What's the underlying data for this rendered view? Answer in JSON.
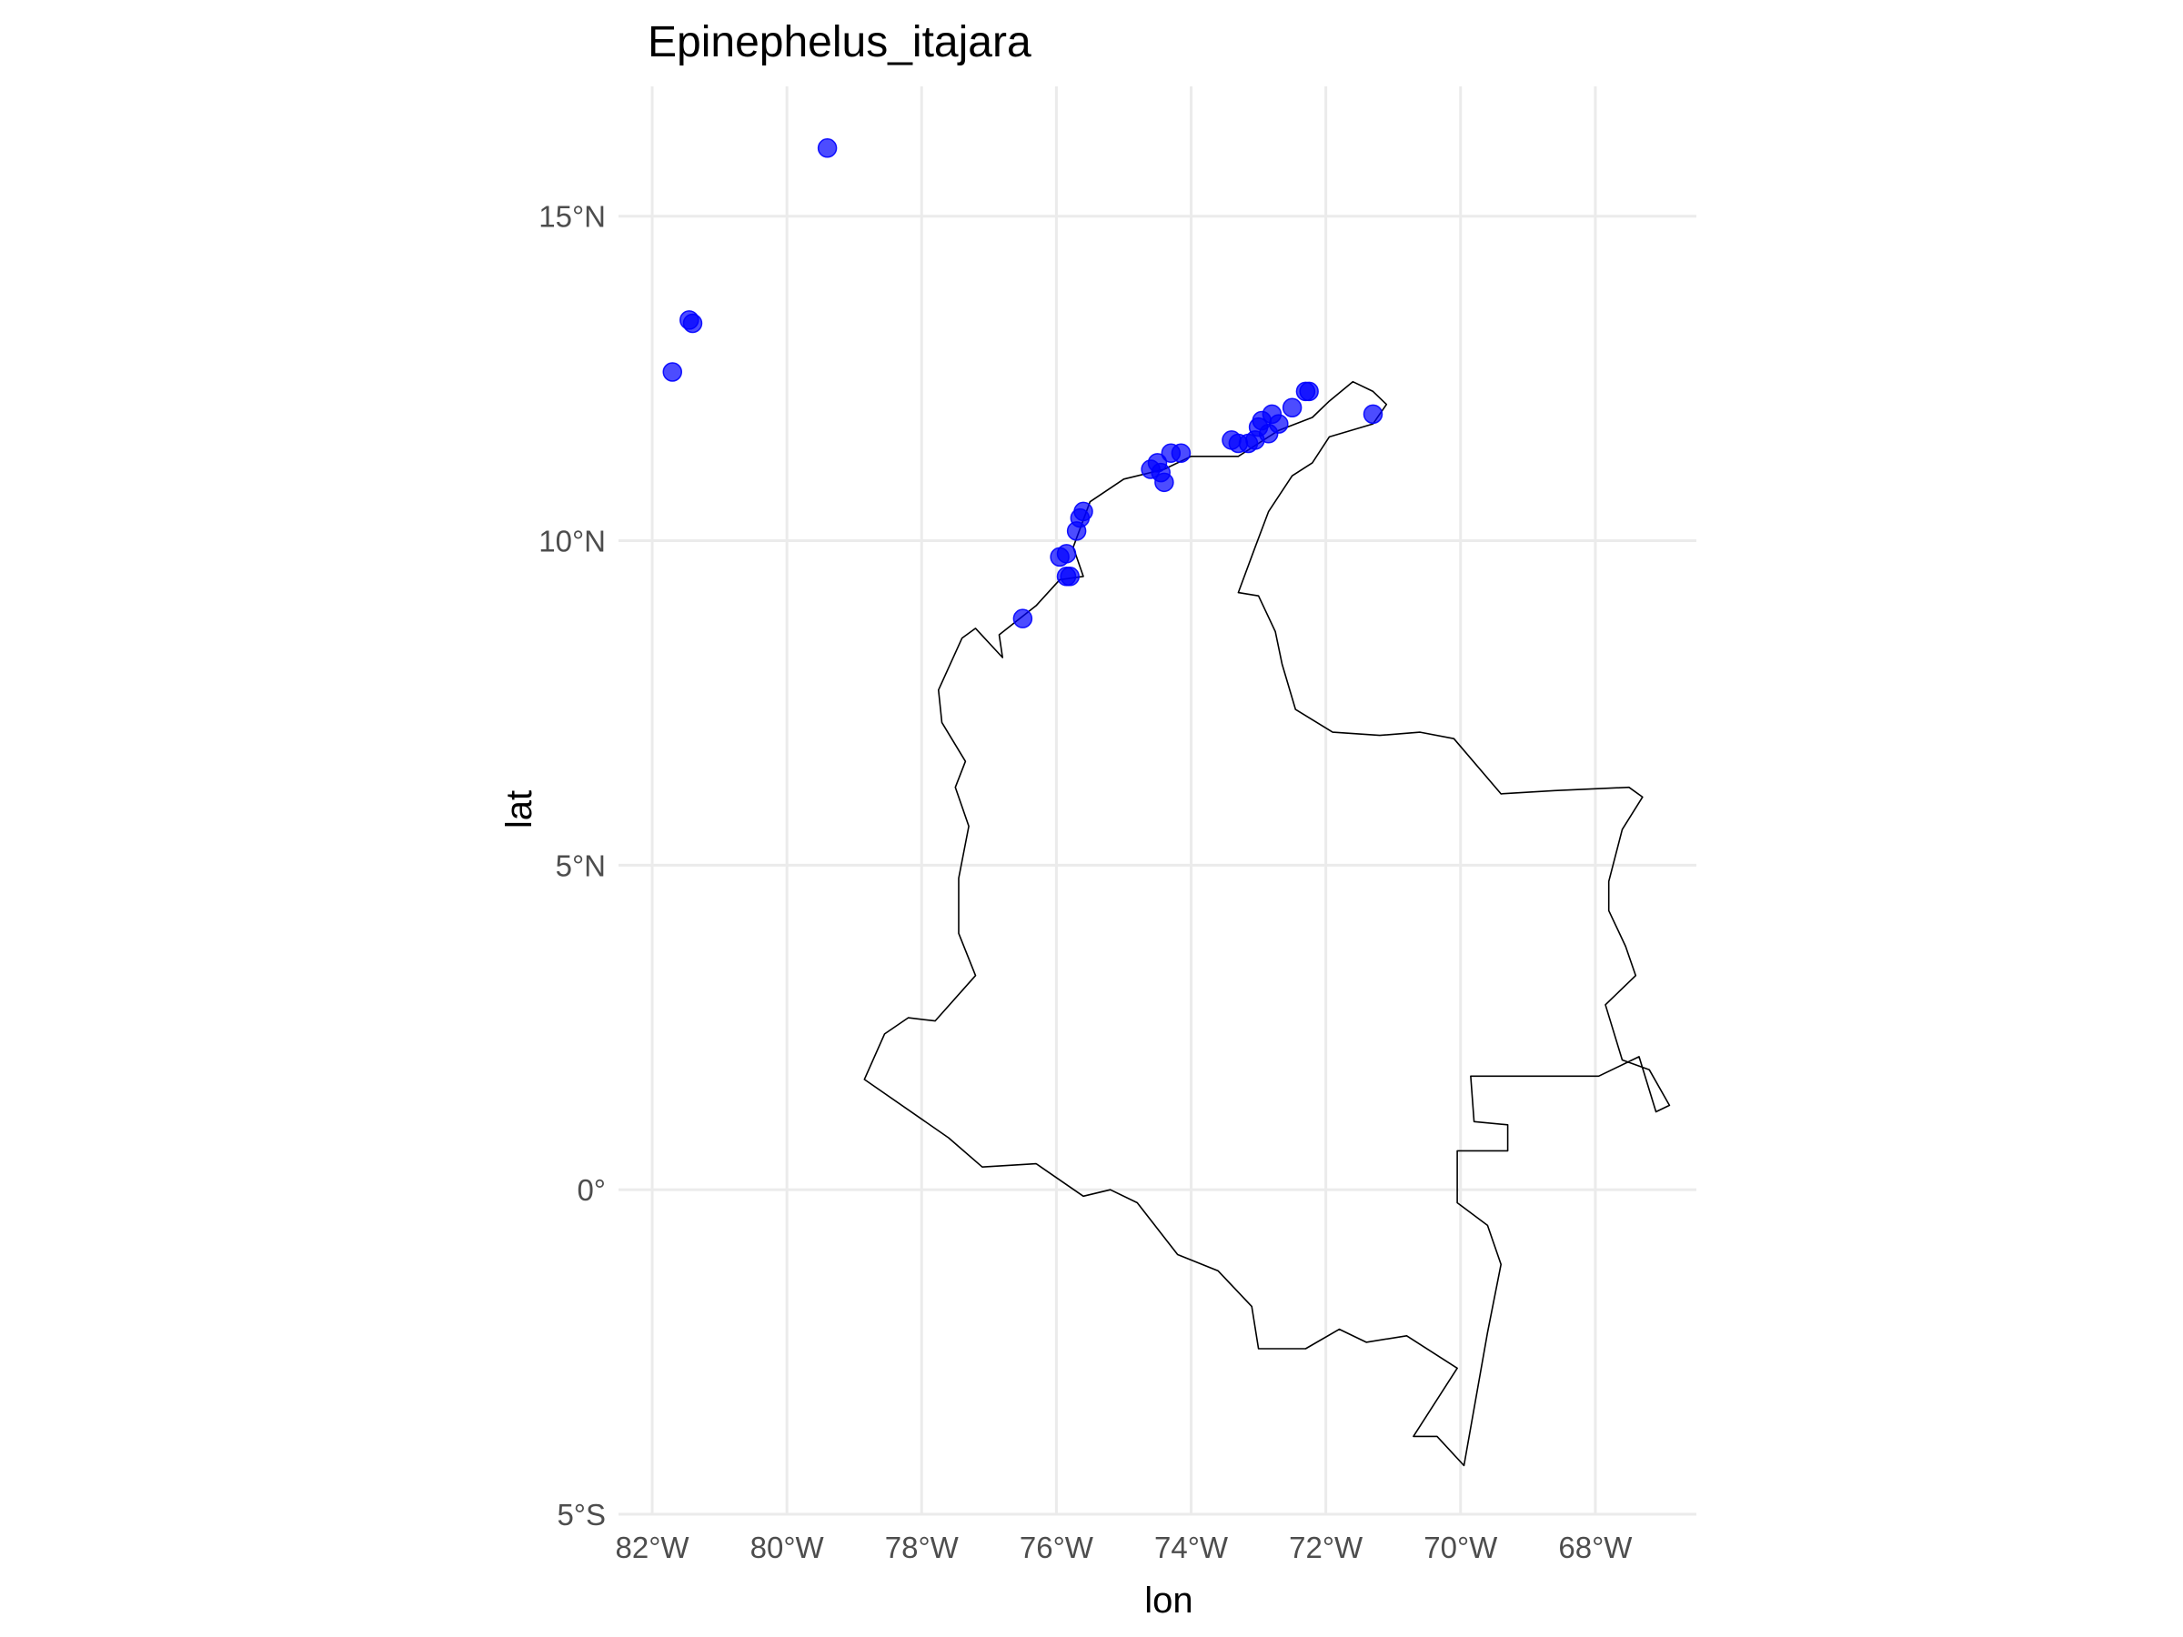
{
  "chart_data": {
    "type": "scatter",
    "title": "Epinephelus_itajara",
    "xlabel": "lon",
    "ylabel": "lat",
    "xlim": [
      -82.5,
      -66.5
    ],
    "ylim": [
      -5.0,
      17.0
    ],
    "grid": true,
    "x_ticks": [
      {
        "value": -82,
        "label": "82°W"
      },
      {
        "value": -80,
        "label": "80°W"
      },
      {
        "value": -78,
        "label": "78°W"
      },
      {
        "value": -76,
        "label": "76°W"
      },
      {
        "value": -74,
        "label": "74°W"
      },
      {
        "value": -72,
        "label": "72°W"
      },
      {
        "value": -70,
        "label": "70°W"
      },
      {
        "value": -68,
        "label": "68°W"
      }
    ],
    "y_ticks": [
      {
        "value": -5,
        "label": "5°S"
      },
      {
        "value": 0,
        "label": "0°"
      },
      {
        "value": 5,
        "label": "5°N"
      },
      {
        "value": 10,
        "label": "10°N"
      },
      {
        "value": 15,
        "label": "15°N"
      }
    ],
    "point_color": "#0000ff",
    "outline_color": "#000000",
    "points": [
      {
        "lon": -79.4,
        "lat": 16.05
      },
      {
        "lon": -81.45,
        "lat": 13.4
      },
      {
        "lon": -81.4,
        "lat": 13.35
      },
      {
        "lon": -81.7,
        "lat": 12.6
      },
      {
        "lon": -71.3,
        "lat": 11.95
      },
      {
        "lon": -72.3,
        "lat": 12.3
      },
      {
        "lon": -72.25,
        "lat": 12.3
      },
      {
        "lon": -72.5,
        "lat": 12.05
      },
      {
        "lon": -72.8,
        "lat": 11.95
      },
      {
        "lon": -72.7,
        "lat": 11.8
      },
      {
        "lon": -72.95,
        "lat": 11.85
      },
      {
        "lon": -73.0,
        "lat": 11.75
      },
      {
        "lon": -72.85,
        "lat": 11.65
      },
      {
        "lon": -73.05,
        "lat": 11.55
      },
      {
        "lon": -73.15,
        "lat": 11.5
      },
      {
        "lon": -73.3,
        "lat": 11.5
      },
      {
        "lon": -73.4,
        "lat": 11.55
      },
      {
        "lon": -74.15,
        "lat": 11.35
      },
      {
        "lon": -74.3,
        "lat": 11.35
      },
      {
        "lon": -74.5,
        "lat": 11.2
      },
      {
        "lon": -74.6,
        "lat": 11.1
      },
      {
        "lon": -74.45,
        "lat": 11.05
      },
      {
        "lon": -74.4,
        "lat": 10.9
      },
      {
        "lon": -75.6,
        "lat": 10.45
      },
      {
        "lon": -75.65,
        "lat": 10.35
      },
      {
        "lon": -75.7,
        "lat": 10.15
      },
      {
        "lon": -75.85,
        "lat": 9.8
      },
      {
        "lon": -75.95,
        "lat": 9.75
      },
      {
        "lon": -75.85,
        "lat": 9.45
      },
      {
        "lon": -75.8,
        "lat": 9.45
      },
      {
        "lon": -76.5,
        "lat": 8.8
      }
    ],
    "outline": [
      [
        -71.6,
        12.45
      ],
      [
        -71.3,
        12.3
      ],
      [
        -71.1,
        12.1
      ],
      [
        -71.3,
        11.8
      ],
      [
        -71.95,
        11.6
      ],
      [
        -72.2,
        11.2
      ],
      [
        -72.5,
        11.0
      ],
      [
        -72.85,
        10.45
      ],
      [
        -73.05,
        9.9
      ],
      [
        -73.3,
        9.2
      ],
      [
        -73.0,
        9.15
      ],
      [
        -72.75,
        8.6
      ],
      [
        -72.65,
        8.1
      ],
      [
        -72.45,
        7.4
      ],
      [
        -71.9,
        7.05
      ],
      [
        -71.2,
        7.0
      ],
      [
        -70.6,
        7.05
      ],
      [
        -70.1,
        6.95
      ],
      [
        -69.4,
        6.1
      ],
      [
        -68.6,
        6.15
      ],
      [
        -67.5,
        6.2
      ],
      [
        -67.3,
        6.05
      ],
      [
        -67.6,
        5.55
      ],
      [
        -67.8,
        4.75
      ],
      [
        -67.8,
        4.3
      ],
      [
        -67.55,
        3.75
      ],
      [
        -67.4,
        3.3
      ],
      [
        -67.85,
        2.85
      ],
      [
        -67.6,
        2.0
      ],
      [
        -67.2,
        1.85
      ],
      [
        -66.9,
        1.3
      ],
      [
        -67.1,
        1.2
      ],
      [
        -67.35,
        2.05
      ],
      [
        -67.95,
        1.75
      ],
      [
        -69.85,
        1.75
      ],
      [
        -69.8,
        1.05
      ],
      [
        -69.3,
        1.0
      ],
      [
        -69.3,
        0.6
      ],
      [
        -70.05,
        0.6
      ],
      [
        -70.05,
        -0.2
      ],
      [
        -69.6,
        -0.55
      ],
      [
        -69.4,
        -1.15
      ],
      [
        -69.6,
        -2.2
      ],
      [
        -69.95,
        -4.25
      ],
      [
        -70.35,
        -3.8
      ],
      [
        -70.7,
        -3.8
      ],
      [
        -70.05,
        -2.75
      ],
      [
        -70.8,
        -2.25
      ],
      [
        -71.4,
        -2.35
      ],
      [
        -71.8,
        -2.15
      ],
      [
        -72.3,
        -2.45
      ],
      [
        -73.0,
        -2.45
      ],
      [
        -73.1,
        -1.8
      ],
      [
        -73.6,
        -1.25
      ],
      [
        -74.2,
        -1.0
      ],
      [
        -74.8,
        -0.2
      ],
      [
        -75.2,
        0.0
      ],
      [
        -75.6,
        -0.1
      ],
      [
        -76.3,
        0.4
      ],
      [
        -77.1,
        0.35
      ],
      [
        -77.6,
        0.8
      ],
      [
        -78.85,
        1.7
      ],
      [
        -78.55,
        2.4
      ],
      [
        -78.2,
        2.65
      ],
      [
        -77.8,
        2.6
      ],
      [
        -77.2,
        3.3
      ],
      [
        -77.45,
        3.95
      ],
      [
        -77.45,
        4.8
      ],
      [
        -77.3,
        5.6
      ],
      [
        -77.5,
        6.2
      ],
      [
        -77.35,
        6.6
      ],
      [
        -77.7,
        7.2
      ],
      [
        -77.75,
        7.7
      ],
      [
        -77.4,
        8.5
      ],
      [
        -77.2,
        8.65
      ],
      [
        -76.8,
        8.2
      ],
      [
        -76.85,
        8.55
      ],
      [
        -76.3,
        9.0
      ],
      [
        -75.95,
        9.4
      ],
      [
        -75.6,
        9.45
      ],
      [
        -75.75,
        9.9
      ],
      [
        -75.5,
        10.6
      ],
      [
        -75.0,
        10.95
      ],
      [
        -74.4,
        11.1
      ],
      [
        -74.0,
        11.3
      ],
      [
        -73.3,
        11.3
      ],
      [
        -72.7,
        11.7
      ],
      [
        -72.2,
        11.9
      ],
      [
        -71.95,
        12.15
      ],
      [
        -71.6,
        12.45
      ]
    ]
  }
}
